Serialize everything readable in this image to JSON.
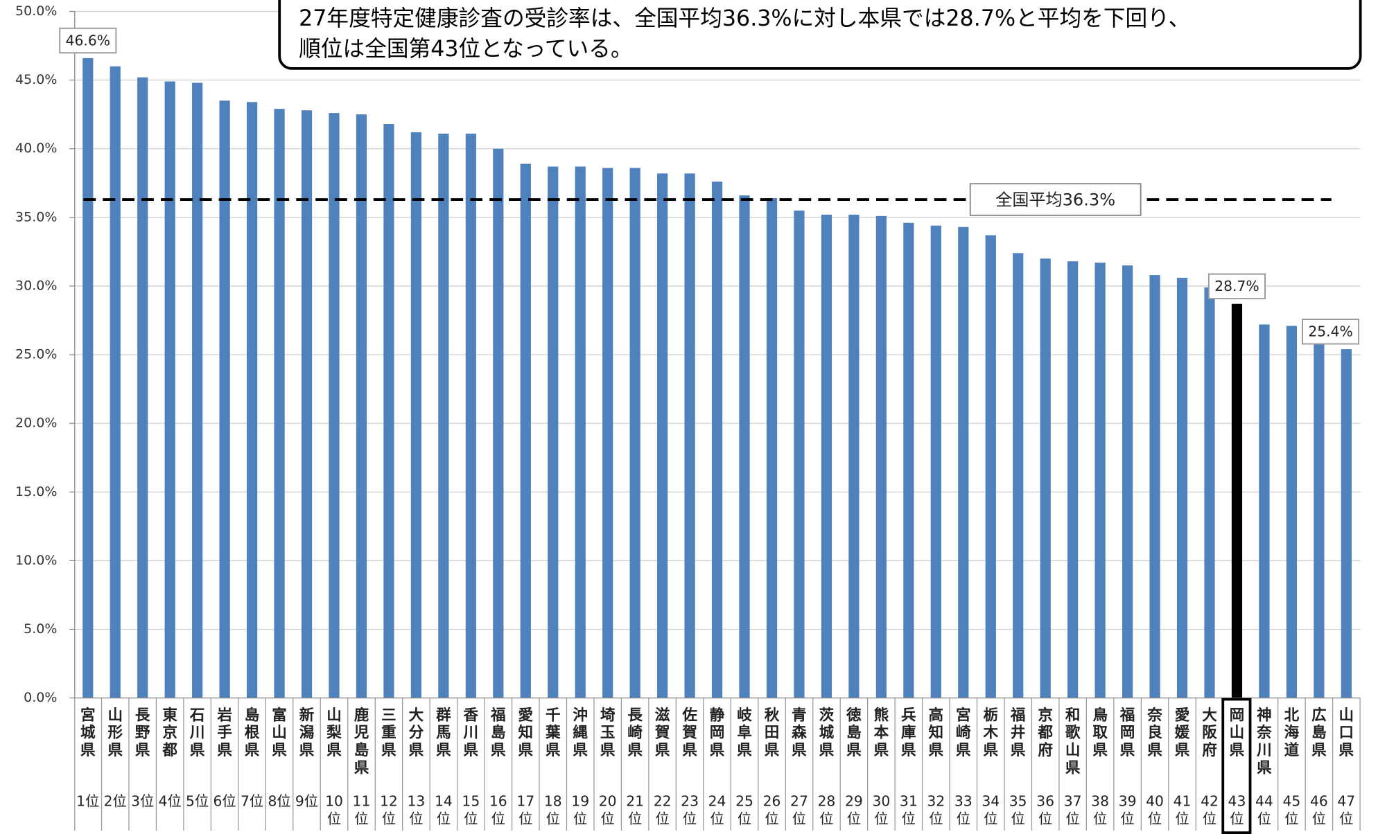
{
  "chart_data": {
    "type": "bar",
    "title": [
      "27年度特定健康診査の受診率は、全国平均36.3%に対し本県では28.7%と平均を下回り、",
      "順位は全国第43位となっている。"
    ],
    "categories": [
      "宮城県",
      "山形県",
      "長野県",
      "東京都",
      "石川県",
      "岩手県",
      "島根県",
      "富山県",
      "新潟県",
      "山梨県",
      "鹿児島県",
      "三重県",
      "大分県",
      "群馬県",
      "香川県",
      "福島県",
      "愛知県",
      "千葉県",
      "沖縄県",
      "埼玉県",
      "長崎県",
      "滋賀県",
      "佐賀県",
      "静岡県",
      "岐阜県",
      "秋田県",
      "青森県",
      "茨城県",
      "徳島県",
      "熊本県",
      "兵庫県",
      "高知県",
      "宮崎県",
      "栃木県",
      "福井県",
      "京都府",
      "和歌山県",
      "鳥取県",
      "福岡県",
      "奈良県",
      "愛媛県",
      "大阪府",
      "岡山県",
      "神奈川県",
      "北海道",
      "広島県",
      "山口県"
    ],
    "ranks": [
      "1位",
      "2位",
      "3位",
      "4位",
      "5位",
      "6位",
      "7位",
      "8位",
      "9位",
      "10位",
      "11位",
      "12位",
      "13位",
      "14位",
      "15位",
      "16位",
      "17位",
      "18位",
      "19位",
      "20位",
      "21位",
      "22位",
      "23位",
      "24位",
      "25位",
      "26位",
      "27位",
      "28位",
      "29位",
      "30位",
      "31位",
      "32位",
      "33位",
      "34位",
      "35位",
      "36位",
      "37位",
      "38位",
      "39位",
      "40位",
      "41位",
      "42位",
      "43位",
      "44位",
      "45位",
      "46位",
      "47位"
    ],
    "values": [
      46.6,
      46.0,
      45.2,
      44.9,
      44.8,
      43.5,
      43.4,
      42.9,
      42.8,
      42.6,
      42.5,
      41.8,
      41.2,
      41.1,
      41.1,
      40.0,
      38.9,
      38.7,
      38.7,
      38.6,
      38.6,
      38.2,
      38.2,
      37.6,
      36.6,
      36.4,
      35.5,
      35.2,
      35.2,
      35.1,
      34.6,
      34.4,
      34.3,
      33.7,
      32.4,
      32.0,
      31.8,
      31.7,
      31.5,
      30.8,
      30.6,
      29.9,
      28.7,
      27.2,
      27.1,
      25.8,
      25.4
    ],
    "value_labels": [
      "46.6%",
      null,
      null,
      null,
      null,
      null,
      null,
      null,
      null,
      null,
      null,
      null,
      null,
      null,
      null,
      null,
      null,
      null,
      null,
      null,
      null,
      null,
      null,
      null,
      null,
      null,
      null,
      null,
      null,
      null,
      null,
      null,
      null,
      null,
      null,
      null,
      null,
      null,
      null,
      null,
      null,
      null,
      "28.7%",
      null,
      null,
      null,
      "25.4%"
    ],
    "color": "#4f81bd",
    "highlight_category": "岡山県",
    "highlight_color": "#000000",
    "reference_line": {
      "value": 36.3,
      "label": "全国平均36.3%"
    },
    "ylim": [
      0,
      50
    ],
    "yticks": [
      {
        "value": 0,
        "label": "0.0%"
      },
      {
        "value": 5,
        "label": "5.0%"
      },
      {
        "value": 10,
        "label": "10.0%"
      },
      {
        "value": 15,
        "label": "15.0%"
      },
      {
        "value": 20,
        "label": "20.0%"
      },
      {
        "value": 25,
        "label": "25.0%"
      },
      {
        "value": 30,
        "label": "30.0%"
      },
      {
        "value": 35,
        "label": "35.0%"
      },
      {
        "value": 40,
        "label": "40.0%"
      },
      {
        "value": 45,
        "label": "45.0%"
      },
      {
        "value": 50,
        "label": "50.0%"
      }
    ],
    "grid": true
  }
}
